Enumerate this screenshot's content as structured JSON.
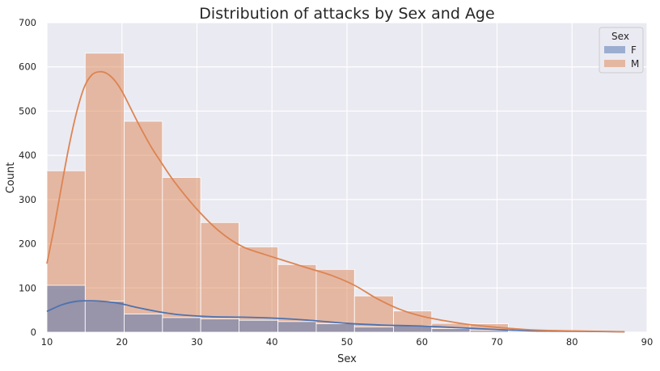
{
  "chart_data": {
    "type": "bar",
    "title": "Distribution of attacks by Sex and Age",
    "xlabel": "Sex",
    "ylabel": "Count",
    "xlim": [
      10,
      90
    ],
    "ylim": [
      0,
      700
    ],
    "xticks": [
      "10",
      "20",
      "30",
      "40",
      "50",
      "60",
      "70",
      "80",
      "90"
    ],
    "yticks": [
      "0",
      "100",
      "200",
      "300",
      "400",
      "500",
      "600",
      "700"
    ],
    "grid": true,
    "legend": {
      "title": "Sex",
      "position": "top-right",
      "entries": [
        "F",
        "M"
      ]
    },
    "bin_edges": [
      10,
      15.1,
      20.3,
      25.4,
      30.5,
      35.6,
      40.8,
      45.9,
      51.0,
      56.2,
      61.3,
      66.4,
      71.5,
      76.7,
      81.8,
      86.9
    ],
    "series": [
      {
        "name": "F",
        "color": "#4c72b0",
        "values": [
          106,
          70,
          41,
          33,
          30,
          27,
          24,
          19,
          12,
          15,
          8,
          4,
          2,
          1,
          0
        ],
        "kde_x": [
          10,
          12,
          14,
          16,
          18,
          20,
          22,
          25,
          28,
          32,
          36,
          40,
          45,
          50,
          55,
          60,
          65,
          70,
          75,
          80,
          87
        ],
        "kde_y": [
          47,
          62,
          70,
          71,
          69,
          64,
          56,
          46,
          39,
          35,
          34,
          32,
          27,
          20,
          16,
          14,
          10,
          6,
          3,
          2,
          1
        ]
      },
      {
        "name": "M",
        "color": "#dd8452",
        "values": [
          365,
          631,
          477,
          350,
          248,
          193,
          153,
          142,
          82,
          48,
          20,
          19,
          3,
          2,
          1
        ],
        "kde_x": [
          10,
          11,
          12,
          13,
          14,
          15,
          16,
          17,
          18,
          19,
          20,
          21,
          22,
          23,
          24,
          25,
          27,
          30,
          33,
          36,
          39,
          42,
          45,
          48,
          51,
          54,
          57,
          60,
          63,
          66,
          70,
          75,
          80,
          87
        ],
        "kde_y": [
          155,
          240,
          335,
          425,
          500,
          555,
          582,
          589,
          585,
          570,
          545,
          512,
          478,
          446,
          416,
          390,
          340,
          278,
          228,
          194,
          176,
          160,
          144,
          128,
          106,
          76,
          52,
          36,
          26,
          18,
          11,
          5,
          3,
          1
        ]
      }
    ]
  }
}
